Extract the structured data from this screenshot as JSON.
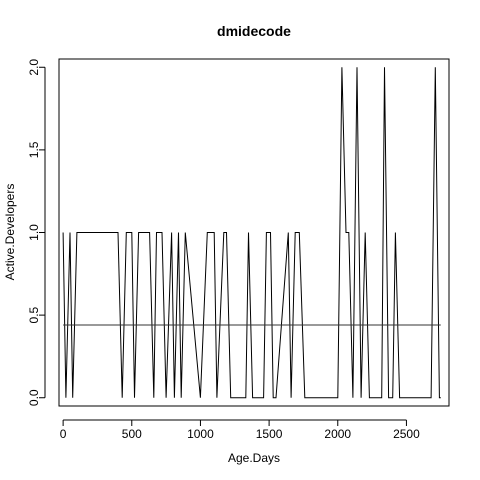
{
  "chart_data": {
    "type": "line",
    "title": "dmidecode",
    "xlabel": "Age.Days",
    "ylabel": "Active.Developers",
    "xlim": [
      -30,
      2810
    ],
    "ylim": [
      -0.05,
      2.05
    ],
    "xticks": [
      0,
      500,
      1000,
      1500,
      2000,
      2500
    ],
    "xtick_labels": [
      "0",
      "500",
      "1000",
      "1500",
      "2000",
      "2500"
    ],
    "yticks": [
      0,
      0.5,
      1,
      1.5,
      2
    ],
    "ytick_labels": [
      "0.0",
      "0.5",
      "1.0",
      "1.5",
      "2.0"
    ],
    "grid": false,
    "legend": "none",
    "series": [
      {
        "x": [
          0,
          20,
          50,
          70,
          100,
          400,
          430,
          460,
          500,
          520,
          550,
          630,
          660,
          680,
          720,
          750,
          790,
          810,
          840,
          860,
          890,
          1000,
          1050,
          1100,
          1120,
          1170,
          1190,
          1220,
          1330,
          1350,
          1380,
          1460,
          1480,
          1510,
          1530,
          1550,
          1640,
          1660,
          1690,
          1720,
          1760,
          2000,
          2030,
          2060,
          2080,
          2110,
          2140,
          2170,
          2200,
          2230,
          2320,
          2340,
          2370,
          2400,
          2420,
          2450,
          2680,
          2710,
          2740,
          2750
        ],
        "y": [
          1,
          0,
          1,
          0,
          1,
          1,
          0,
          1,
          1,
          0,
          1,
          1,
          0,
          1,
          1,
          0,
          1,
          0,
          1,
          0,
          1,
          0,
          1,
          1,
          0,
          1,
          1,
          0,
          0,
          1,
          0,
          0,
          1,
          1,
          0,
          0,
          1,
          0,
          1,
          1,
          0,
          0,
          2,
          1,
          1,
          0,
          2,
          0,
          1,
          0,
          0,
          2,
          0,
          0,
          1,
          0,
          0,
          2,
          0,
          0
        ],
        "color": "#000000"
      }
    ],
    "reference_line": {
      "y": 0.44,
      "color": "#333333"
    }
  }
}
